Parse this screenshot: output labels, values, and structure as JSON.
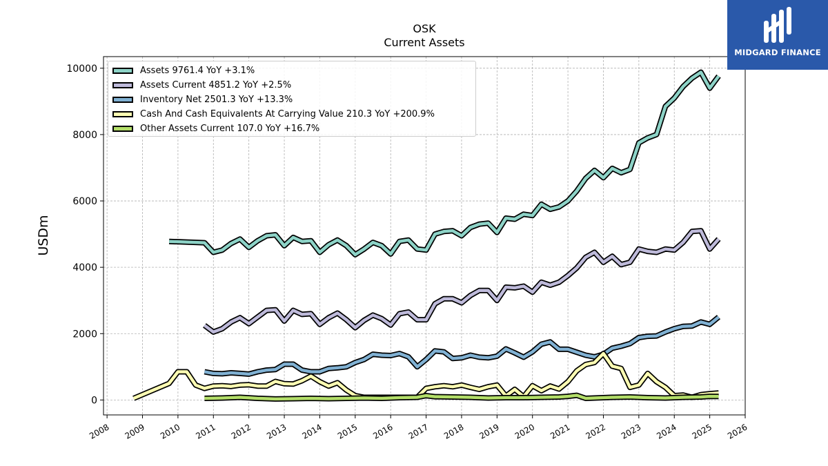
{
  "chart_data": {
    "type": "line",
    "title": "OSK",
    "subtitle": "Current  Assets",
    "ylabel": "USDm",
    "xlabel": "",
    "xlim": [
      2007.9,
      2026.0
    ],
    "ylim": [
      -450,
      10350
    ],
    "x_ticks": [
      "2008",
      "2009",
      "2010",
      "2011",
      "2012",
      "2013",
      "2014",
      "2015",
      "2016",
      "2017",
      "2018",
      "2019",
      "2020",
      "2021",
      "2022",
      "2023",
      "2024",
      "2025",
      "2026"
    ],
    "y_ticks": [
      "0",
      "2000",
      "4000",
      "6000",
      "8000",
      "10000"
    ],
    "grid": true,
    "legend_position": "upper-left",
    "series": [
      {
        "name": "Assets",
        "legend": "Assets  9761.4 YoY +3.1%",
        "color": "#8dd3c7",
        "x": [
          2009.75,
          2010.75,
          2011.0,
          2011.25,
          2011.5,
          2011.75,
          2012.0,
          2012.25,
          2012.5,
          2012.75,
          2013.0,
          2013.25,
          2013.5,
          2013.75,
          2014.0,
          2014.25,
          2014.5,
          2014.75,
          2015.0,
          2015.25,
          2015.5,
          2015.75,
          2016.0,
          2016.25,
          2016.5,
          2016.75,
          2017.0,
          2017.25,
          2017.5,
          2017.75,
          2018.0,
          2018.25,
          2018.5,
          2018.75,
          2019.0,
          2019.25,
          2019.5,
          2019.75,
          2020.0,
          2020.25,
          2020.5,
          2020.75,
          2021.0,
          2021.25,
          2021.5,
          2021.75,
          2022.0,
          2022.25,
          2022.5,
          2022.75,
          2023.0,
          2023.25,
          2023.5,
          2023.75,
          2024.0,
          2024.25,
          2024.5,
          2024.75,
          2025.0,
          2025.25
        ],
        "values": [
          4780,
          4740,
          4450,
          4520,
          4720,
          4850,
          4600,
          4800,
          4950,
          4980,
          4650,
          4900,
          4780,
          4800,
          4450,
          4680,
          4820,
          4650,
          4380,
          4550,
          4750,
          4650,
          4400,
          4780,
          4820,
          4550,
          4520,
          5000,
          5080,
          5100,
          4950,
          5200,
          5300,
          5330,
          5050,
          5480,
          5450,
          5600,
          5560,
          5900,
          5750,
          5820,
          6000,
          6300,
          6680,
          6920,
          6700,
          6980,
          6850,
          6950,
          7750,
          7900,
          8000,
          8850,
          9100,
          9450,
          9700,
          9880,
          9400,
          9761.4
        ]
      },
      {
        "name": "Assets Current",
        "legend": "Assets Current  4851.2 YoY +2.5%",
        "color": "#bebada",
        "x": [
          2010.75,
          2011.0,
          2011.25,
          2011.5,
          2011.75,
          2012.0,
          2012.25,
          2012.5,
          2012.75,
          2013.0,
          2013.25,
          2013.5,
          2013.75,
          2014.0,
          2014.25,
          2014.5,
          2014.75,
          2015.0,
          2015.25,
          2015.5,
          2015.75,
          2016.0,
          2016.25,
          2016.5,
          2016.75,
          2017.0,
          2017.25,
          2017.5,
          2017.75,
          2018.0,
          2018.25,
          2018.5,
          2018.75,
          2019.0,
          2019.25,
          2019.5,
          2019.75,
          2020.0,
          2020.25,
          2020.5,
          2020.75,
          2021.0,
          2021.25,
          2021.5,
          2021.75,
          2022.0,
          2022.25,
          2022.5,
          2022.75,
          2023.0,
          2023.25,
          2023.5,
          2023.75,
          2024.0,
          2024.25,
          2024.5,
          2024.75,
          2025.0,
          2025.25
        ],
        "values": [
          2250,
          2050,
          2150,
          2350,
          2480,
          2300,
          2500,
          2700,
          2720,
          2380,
          2700,
          2580,
          2600,
          2280,
          2480,
          2620,
          2420,
          2180,
          2400,
          2560,
          2450,
          2260,
          2600,
          2650,
          2420,
          2420,
          2900,
          3050,
          3050,
          2930,
          3150,
          3300,
          3300,
          3000,
          3400,
          3380,
          3430,
          3250,
          3550,
          3460,
          3550,
          3750,
          3980,
          4300,
          4450,
          4150,
          4330,
          4080,
          4150,
          4550,
          4480,
          4450,
          4550,
          4520,
          4750,
          5080,
          5100,
          4550,
          4851.2
        ]
      },
      {
        "name": "Inventory Net",
        "legend": "Inventory Net  2501.3 YoY +13.3%",
        "color": "#80b1d3",
        "x": [
          2010.75,
          2011.0,
          2011.25,
          2011.5,
          2011.75,
          2012.0,
          2012.25,
          2012.5,
          2012.75,
          2013.0,
          2013.25,
          2013.5,
          2013.75,
          2014.0,
          2014.25,
          2014.5,
          2014.75,
          2015.0,
          2015.25,
          2015.5,
          2015.75,
          2016.0,
          2016.25,
          2016.5,
          2016.75,
          2017.0,
          2017.25,
          2017.5,
          2017.75,
          2018.0,
          2018.25,
          2018.5,
          2018.75,
          2019.0,
          2019.25,
          2019.5,
          2019.75,
          2020.0,
          2020.25,
          2020.5,
          2020.75,
          2021.0,
          2021.25,
          2021.5,
          2021.75,
          2022.0,
          2022.25,
          2022.5,
          2022.75,
          2023.0,
          2023.25,
          2023.5,
          2023.75,
          2024.0,
          2024.25,
          2024.5,
          2024.75,
          2025.0,
          2025.25
        ],
        "values": [
          850,
          800,
          790,
          820,
          800,
          780,
          850,
          900,
          920,
          1080,
          1080,
          900,
          850,
          850,
          950,
          970,
          1000,
          1130,
          1220,
          1380,
          1350,
          1340,
          1400,
          1300,
          1000,
          1220,
          1480,
          1450,
          1250,
          1270,
          1350,
          1290,
          1270,
          1320,
          1540,
          1420,
          1290,
          1450,
          1680,
          1750,
          1530,
          1530,
          1440,
          1350,
          1300,
          1380,
          1560,
          1620,
          1700,
          1880,
          1920,
          1930,
          2050,
          2150,
          2220,
          2230,
          2350,
          2280,
          2501.3
        ]
      },
      {
        "name": "Cash And Cash Equivalents At Carrying Value",
        "legend": "Cash And Cash Equivalents At Carrying Value  210.3 YoY +200.9%",
        "color": "#ffffb3",
        "x": [
          2008.75,
          2009.75,
          2010.0,
          2010.25,
          2010.5,
          2010.75,
          2011.0,
          2011.25,
          2011.5,
          2011.75,
          2012.0,
          2012.25,
          2012.5,
          2012.75,
          2013.0,
          2013.25,
          2013.5,
          2013.75,
          2014.0,
          2014.25,
          2014.5,
          2014.75,
          2015.0,
          2015.25,
          2015.5,
          2015.75,
          2016.0,
          2016.25,
          2016.5,
          2016.75,
          2017.0,
          2017.25,
          2017.5,
          2017.75,
          2018.0,
          2018.25,
          2018.5,
          2018.75,
          2019.0,
          2019.25,
          2019.5,
          2019.75,
          2020.0,
          2020.25,
          2020.5,
          2020.75,
          2021.0,
          2021.25,
          2021.5,
          2021.75,
          2022.0,
          2022.25,
          2022.5,
          2022.75,
          2023.0,
          2023.25,
          2023.5,
          2023.75,
          2024.0,
          2024.25,
          2024.5,
          2024.75,
          2025.0,
          2025.25
        ],
        "values": [
          50,
          500,
          850,
          850,
          450,
          350,
          420,
          430,
          410,
          450,
          460,
          420,
          420,
          560,
          490,
          480,
          580,
          720,
          550,
          420,
          520,
          300,
          130,
          80,
          80,
          80,
          80,
          80,
          80,
          80,
          350,
          400,
          430,
          400,
          450,
          380,
          320,
          400,
          450,
          120,
          320,
          100,
          430,
          280,
          420,
          330,
          550,
          880,
          1070,
          1130,
          1400,
          1020,
          950,
          380,
          450,
          800,
          550,
          380,
          130,
          150,
          80,
          160,
          190,
          210.3
        ]
      },
      {
        "name": "Other Assets Current",
        "legend": "Other Assets Current  107.0 YoY +16.7%",
        "color": "#b3de69",
        "x": [
          2010.75,
          2011.25,
          2011.75,
          2012.25,
          2012.75,
          2013.25,
          2013.75,
          2014.25,
          2014.75,
          2015.25,
          2015.75,
          2016.25,
          2016.75,
          2017.0,
          2017.25,
          2017.75,
          2018.25,
          2018.75,
          2019.25,
          2019.75,
          2020.25,
          2020.75,
          2021.0,
          2021.25,
          2021.5,
          2021.75,
          2022.25,
          2022.75,
          2023.25,
          2023.75,
          2024.25,
          2024.75,
          2025.0,
          2025.25
        ],
        "values": [
          50,
          60,
          80,
          50,
          30,
          40,
          50,
          40,
          50,
          60,
          50,
          70,
          80,
          130,
          100,
          90,
          80,
          60,
          70,
          70,
          80,
          90,
          110,
          140,
          50,
          60,
          80,
          90,
          70,
          60,
          80,
          90,
          110,
          107.0
        ]
      }
    ]
  },
  "logo": {
    "text": "MIDGARD FINANCE"
  }
}
